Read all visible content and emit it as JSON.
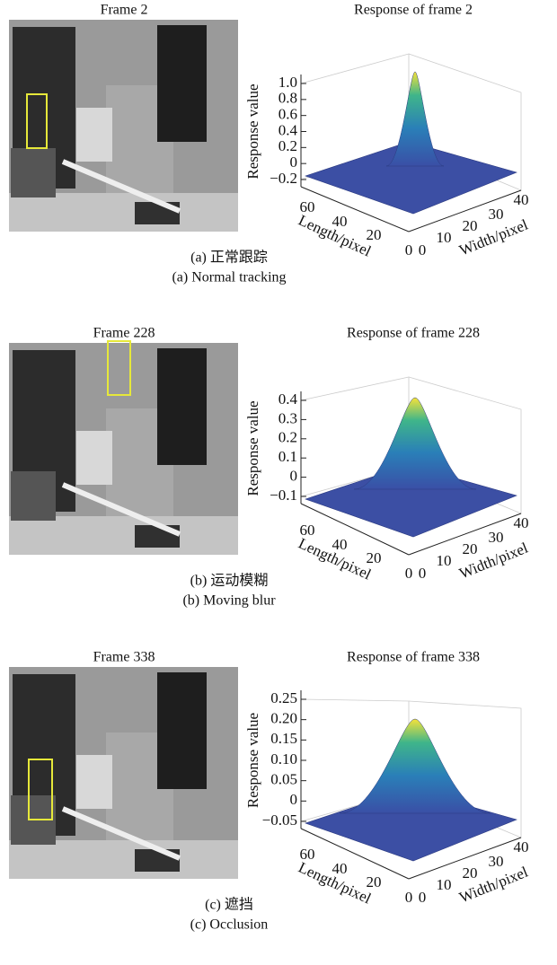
{
  "panels": [
    {
      "frame_title": "Frame 2",
      "plot_title": "Response of frame 2",
      "z_label": "Response value",
      "zticks": [
        "1.0",
        "0.8",
        "0.6",
        "0.4",
        "0.2",
        "0",
        "−0.2"
      ],
      "length_label": "Length/pixel",
      "length_ticks": [
        "60",
        "40",
        "20",
        "0"
      ],
      "width_label": "Width/pixel",
      "width_ticks": [
        "0",
        "10",
        "20",
        "30",
        "40"
      ],
      "caption_cn": "(a) 正常跟踪",
      "caption_en": "(a) Normal tracking"
    },
    {
      "frame_title": "Frame 228",
      "plot_title": "Response of frame 228",
      "z_label": "Response value",
      "zticks": [
        "0.4",
        "0.3",
        "0.2",
        "0.1",
        "0",
        "−0.1"
      ],
      "length_label": "Length/pixel",
      "length_ticks": [
        "60",
        "40",
        "20",
        "0"
      ],
      "width_label": "Width/pixel",
      "width_ticks": [
        "0",
        "10",
        "20",
        "30",
        "40"
      ],
      "caption_cn": "(b) 运动模糊",
      "caption_en": "(b) Moving blur"
    },
    {
      "frame_title": "Frame 338",
      "plot_title": "Response of frame 338",
      "z_label": "Response value",
      "zticks": [
        "0.25",
        "0.20",
        "0.15",
        "0.10",
        "0.05",
        "0",
        "−0.05"
      ],
      "length_label": "Length/pixel",
      "length_ticks": [
        "60",
        "40",
        "20",
        "0"
      ],
      "width_label": "Width/pixel",
      "width_ticks": [
        "0",
        "10",
        "20",
        "30",
        "40"
      ],
      "caption_cn": "(c) 遮挡",
      "caption_en": "(c) Occlusion"
    }
  ]
}
